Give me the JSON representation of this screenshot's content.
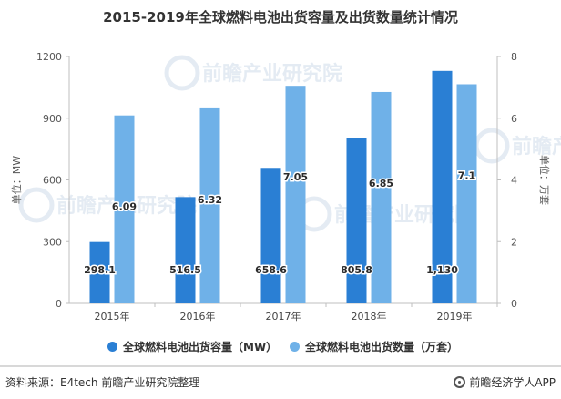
{
  "title": "2015-2019年全球燃料电池出货容量及出货数量统计情况",
  "chart_data": {
    "type": "bar",
    "categories": [
      "2015年",
      "2016年",
      "2017年",
      "2018年",
      "2019年"
    ],
    "series": [
      {
        "name": "全球燃料电池出货容量（MW）",
        "axis": "left",
        "color": "#2a7fd4",
        "values": [
          298.1,
          516.5,
          658.6,
          805.8,
          1130
        ],
        "labels": [
          "298.1",
          "516.5",
          "658.6",
          "805.8",
          "1,130"
        ]
      },
      {
        "name": "全球燃料电池出货数量（万套）",
        "axis": "right",
        "color": "#6fb1e8",
        "values": [
          6.09,
          6.32,
          7.05,
          6.85,
          7.1
        ],
        "labels": [
          "6.09",
          "6.32",
          "7.05",
          "6.85",
          "7.1"
        ]
      }
    ],
    "ylabel_left": "单位：MW",
    "ylabel_right": "单位：万套",
    "ylim_left": [
      0,
      1200
    ],
    "yticks_left": [
      0,
      300,
      600,
      900,
      1200
    ],
    "ylim_right": [
      0,
      8
    ],
    "yticks_right": [
      0,
      2,
      4,
      6,
      8
    ],
    "grid": false,
    "legend_position": "bottom"
  },
  "watermark": "前瞻产业研究院",
  "footer": {
    "source": "资料来源：E4tech 前瞻产业研究院整理",
    "brand": "前瞻经济学人APP"
  }
}
